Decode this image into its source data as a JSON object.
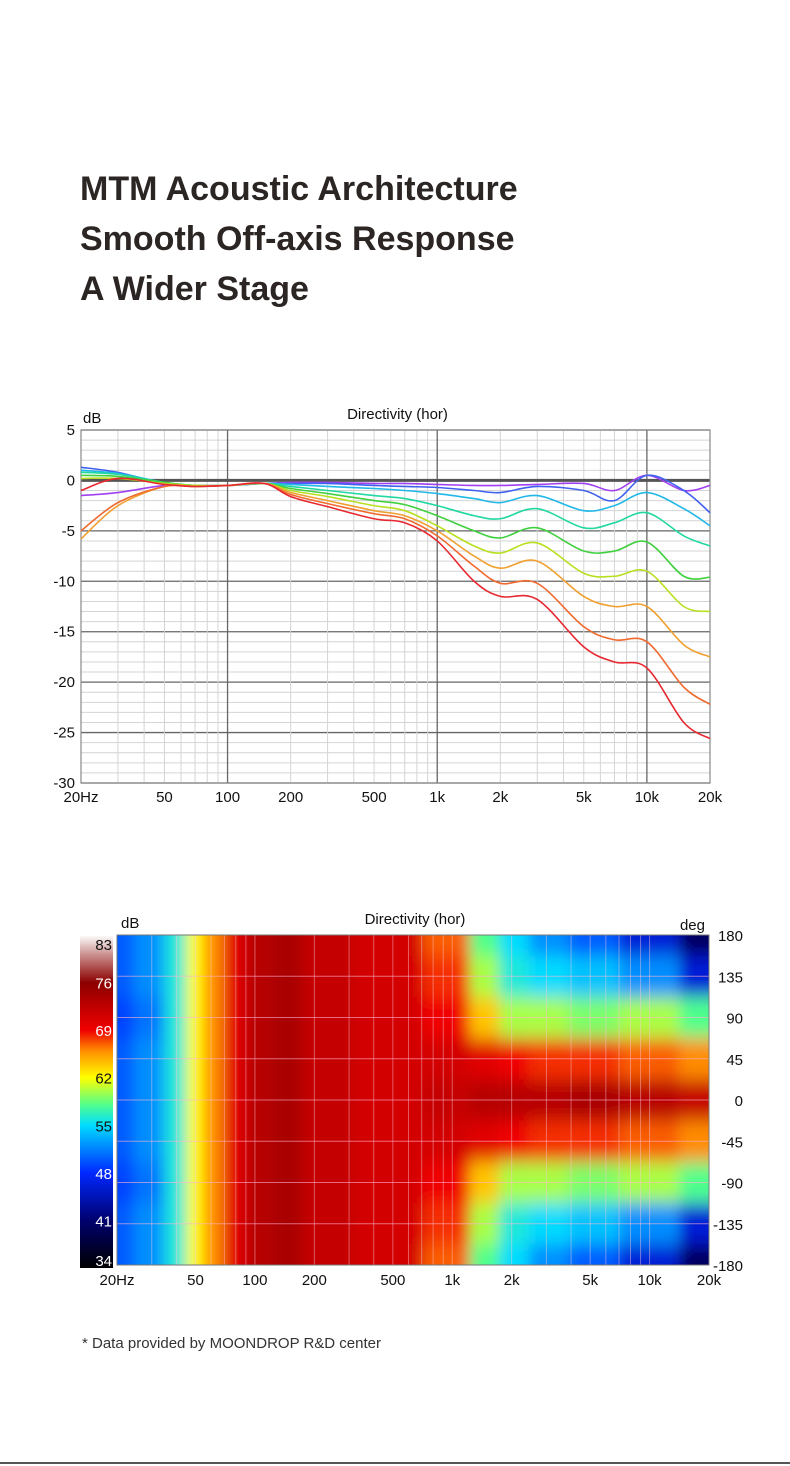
{
  "headline": [
    "MTM Acoustic Architecture",
    "Smooth Off-axis Response",
    "A Wider Stage"
  ],
  "footnote": "* Data provided by MOONDROP R&D center",
  "chart_data": [
    {
      "type": "line",
      "title": "Directivity (hor)",
      "ylabel": "dB",
      "xlabel": "",
      "xscale": "log",
      "xlim": [
        20,
        20000
      ],
      "ylim": [
        -30,
        5
      ],
      "grid": true,
      "x_tick_labels": [
        "20Hz",
        "50",
        "100",
        "200",
        "500",
        "1k",
        "2k",
        "5k",
        "10k",
        "20k"
      ],
      "x_tick_values": [
        20,
        50,
        100,
        200,
        500,
        1000,
        2000,
        5000,
        10000,
        20000
      ],
      "y_ticks": [
        5,
        0,
        -5,
        -10,
        -15,
        -20,
        -25,
        -30
      ],
      "x": [
        20,
        30,
        50,
        70,
        100,
        150,
        200,
        300,
        500,
        700,
        1000,
        1500,
        2000,
        3000,
        5000,
        7000,
        10000,
        15000,
        20000
      ],
      "series": [
        {
          "name": "purple",
          "color": "#a040f0",
          "values": [
            -1.5,
            -1.2,
            -0.5,
            -0.5,
            -0.5,
            -0.3,
            -0.2,
            -0.2,
            -0.3,
            -0.3,
            -0.4,
            -0.5,
            -0.5,
            -0.4,
            -0.3,
            -1.0,
            0.5,
            -1.0,
            -0.5
          ]
        },
        {
          "name": "blue",
          "color": "#4060f0",
          "values": [
            1.3,
            0.8,
            -0.3,
            -0.5,
            -0.5,
            -0.3,
            -0.3,
            -0.3,
            -0.5,
            -0.6,
            -0.7,
            -1.0,
            -1.2,
            -0.6,
            -1.0,
            -2.0,
            0.5,
            -1.0,
            -3.2
          ]
        },
        {
          "name": "cyan",
          "color": "#20b8e8",
          "values": [
            1.0,
            0.7,
            -0.2,
            -0.5,
            -0.5,
            -0.3,
            -0.4,
            -0.6,
            -0.8,
            -1.0,
            -1.3,
            -1.8,
            -2.2,
            -1.5,
            -3.0,
            -2.5,
            -1.2,
            -2.8,
            -4.5
          ]
        },
        {
          "name": "teal",
          "color": "#20d8a0",
          "values": [
            0.8,
            0.6,
            -0.2,
            -0.5,
            -0.5,
            -0.3,
            -0.6,
            -1.0,
            -1.5,
            -1.8,
            -2.5,
            -3.5,
            -3.8,
            -2.8,
            -4.7,
            -4.2,
            -3.2,
            -5.5,
            -6.5
          ]
        },
        {
          "name": "green",
          "color": "#40d040",
          "values": [
            0.5,
            0.4,
            -0.2,
            -0.5,
            -0.5,
            -0.3,
            -0.8,
            -1.3,
            -2.0,
            -2.4,
            -3.5,
            -5.0,
            -5.7,
            -4.7,
            -7.0,
            -7.0,
            -6.1,
            -9.5,
            -9.6
          ]
        },
        {
          "name": "yellow-green",
          "color": "#b8e020",
          "values": [
            0.2,
            0.2,
            -0.3,
            -0.5,
            -0.5,
            -0.3,
            -1.0,
            -1.6,
            -2.5,
            -3.0,
            -4.5,
            -6.5,
            -7.2,
            -6.2,
            -9.2,
            -9.5,
            -9.0,
            -12.5,
            -13.0
          ]
        },
        {
          "name": "orange",
          "color": "#f0a030",
          "values": [
            -5.8,
            -2.5,
            -0.6,
            -0.6,
            -0.5,
            -0.3,
            -1.2,
            -2.0,
            -3.0,
            -3.5,
            -5.0,
            -7.5,
            -8.7,
            -8.0,
            -11.5,
            -12.5,
            -12.5,
            -16.3,
            -17.5
          ]
        },
        {
          "name": "red-orange",
          "color": "#f06a30",
          "values": [
            -5.0,
            -2.2,
            -0.6,
            -0.6,
            -0.5,
            -0.3,
            -1.4,
            -2.3,
            -3.3,
            -3.8,
            -5.5,
            -8.5,
            -10.2,
            -10.2,
            -14.5,
            -15.8,
            -16.0,
            -20.5,
            -22.2
          ]
        },
        {
          "name": "red",
          "color": "#e82830",
          "values": [
            -1.0,
            0.2,
            -0.4,
            -0.6,
            -0.5,
            -0.3,
            -1.6,
            -2.6,
            -3.8,
            -4.2,
            -6.0,
            -10.0,
            -11.5,
            -11.8,
            -16.5,
            -18.0,
            -18.6,
            -24.0,
            -25.6
          ]
        }
      ]
    },
    {
      "type": "heatmap",
      "title": "Directivity (hor)",
      "colorbar_label": "dB",
      "y_label": "deg",
      "xscale": "log",
      "xlim": [
        20,
        20000
      ],
      "ylim": [
        -180,
        180
      ],
      "color_range": [
        34,
        83
      ],
      "colorbar_ticks": [
        "83",
        "76",
        "69",
        "62",
        "55",
        "48",
        "41",
        "34"
      ],
      "y_tick_labels": [
        "180",
        "135",
        "90",
        "45",
        "0",
        "-45",
        "-90",
        "-135",
        "-180"
      ],
      "x_tick_labels": [
        "20Hz",
        "50",
        "100",
        "200",
        "500",
        "1k",
        "2k",
        "5k",
        "10k",
        "20k"
      ],
      "x_tick_values": [
        20,
        50,
        100,
        200,
        500,
        1000,
        2000,
        5000,
        10000,
        20000
      ],
      "freqs": [
        20,
        30,
        40,
        50,
        60,
        80,
        100,
        150,
        200,
        500,
        1000,
        1500,
        2000,
        3000,
        5000,
        10000,
        20000
      ],
      "angles": [
        0,
        45,
        90,
        135,
        180
      ],
      "values_by_angle": [
        [
          50,
          52,
          56,
          62,
          66,
          70,
          73,
          74,
          72,
          71,
          72,
          73,
          73,
          73,
          74,
          73,
          72
        ],
        [
          50,
          52,
          56,
          62,
          66,
          70,
          73,
          74,
          72,
          71,
          71,
          70,
          69,
          68,
          68,
          67,
          66
        ],
        [
          49,
          51,
          56,
          62,
          66,
          70,
          73,
          74,
          72,
          71,
          69,
          64,
          60,
          60,
          59,
          60,
          58
        ],
        [
          50,
          52,
          56,
          62,
          66,
          70,
          73,
          74,
          72,
          71,
          68,
          60,
          56,
          55,
          54,
          52,
          46
        ],
        [
          50,
          52,
          56,
          62,
          66,
          70,
          73,
          74,
          72,
          71,
          67,
          58,
          55,
          52,
          50,
          46,
          40
        ]
      ]
    }
  ]
}
